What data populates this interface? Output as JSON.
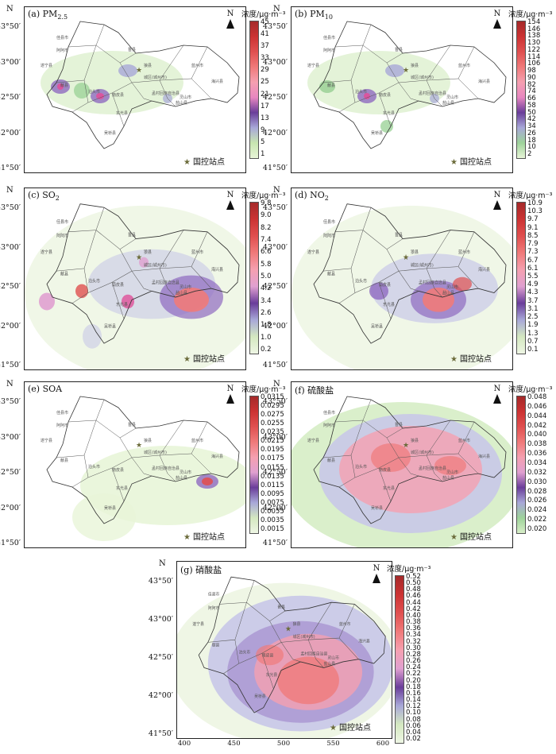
{
  "panels": [
    {
      "label": "(a) PM",
      "sub": "2.5",
      "unit": "浓度/μg·m⁻³",
      "ticks": [
        "45",
        "41",
        "37",
        "33",
        "29",
        "25",
        "21",
        "17",
        "13",
        "9",
        "5",
        "1"
      ],
      "colors": [
        "#a52a2a",
        "#c33",
        "#e05050",
        "#f07a7a",
        "#f5a0b0",
        "#e887c0",
        "#6a3d9a",
        "#a8a8d8",
        "#c8e6b0",
        "#e8f5d8"
      ],
      "pattern": "pm25"
    },
    {
      "label": "(b) PM",
      "sub": "10",
      "unit": "浓度/μg·m⁻³",
      "ticks": [
        "154",
        "146",
        "138",
        "130",
        "122",
        "114",
        "106",
        "98",
        "90",
        "82",
        "74",
        "66",
        "58",
        "50",
        "42",
        "34",
        "26",
        "18",
        "10",
        "2"
      ],
      "colors": [
        "#a52a2a",
        "#c33",
        "#e05050",
        "#f07a7a",
        "#f5a0b0",
        "#e887c0",
        "#6a3d9a",
        "#a8a8d8",
        "#9ed39a",
        "#e8f5d8"
      ],
      "pattern": "pm10"
    },
    {
      "label": "(c) SO",
      "sub": "2",
      "unit": "浓度/μg·m⁻³",
      "ticks": [
        "9.8",
        "9.0",
        "8.2",
        "7.4",
        "6.6",
        "5.8",
        "5.0",
        "4.2",
        "3.4",
        "2.6",
        "1.8",
        "1.0",
        "0.2"
      ],
      "colors": [
        "#a52a2a",
        "#c33",
        "#e05050",
        "#f07a7a",
        "#f5a0b0",
        "#e0a0d0",
        "#6a3d9a",
        "#a8a8d8",
        "#d4e8c0",
        "#eef6e4"
      ],
      "pattern": "so2"
    },
    {
      "label": "(d) NO",
      "sub": "2",
      "unit": "浓度/μg·m⁻³",
      "ticks": [
        "10.9",
        "10.3",
        "9.7",
        "9.1",
        "8.5",
        "7.9",
        "7.3",
        "6.7",
        "6.1",
        "5.5",
        "4.9",
        "4.3",
        "3.7",
        "3.1",
        "2.5",
        "1.9",
        "1.3",
        "0.7",
        "0.1"
      ],
      "colors": [
        "#a52a2a",
        "#c33",
        "#e05050",
        "#f07a7a",
        "#f5a0b0",
        "#e0a0d0",
        "#6a3d9a",
        "#a8a8d8",
        "#d4e8c0",
        "#eef6e4"
      ],
      "pattern": "no2"
    },
    {
      "label": "(e) SOA",
      "sub": "",
      "unit": "浓度/μg·m⁻³",
      "ticks": [
        "0.0315",
        "0.0295",
        "0.0275",
        "0.0255",
        "0.0235",
        "0.0215",
        "0.0195",
        "0.0175",
        "0.0155",
        "0.0135",
        "0.0115",
        "0.0095",
        "0.0075",
        "0.0055",
        "0.0035",
        "0.0015"
      ],
      "colors": [
        "#a52a2a",
        "#c33",
        "#e05050",
        "#f07a7a",
        "#f5a0b0",
        "#e0a0d0",
        "#6a3d9a",
        "#a8a8d8",
        "#d4e8c0",
        "#eef6e4"
      ],
      "pattern": "soa"
    },
    {
      "label": "(f) 硫酸盐",
      "sub": "",
      "unit": "浓度/μg·m⁻³",
      "ticks": [
        "0.048",
        "0.046",
        "0.044",
        "0.042",
        "0.040",
        "0.038",
        "0.036",
        "0.034",
        "0.032",
        "0.030",
        "0.028",
        "0.026",
        "0.024",
        "0.022",
        "0.020"
      ],
      "colors": [
        "#a52a2a",
        "#c33",
        "#e05050",
        "#f07a7a",
        "#f5a0b0",
        "#e0a0d0",
        "#6a3d9a",
        "#a8a8d8",
        "#9ed39a",
        "#d8eec8"
      ],
      "pattern": "so4"
    },
    {
      "label": "(g) 硝酸盐",
      "sub": "",
      "unit": "浓度/μg·m⁻³",
      "ticks": [
        "0.52",
        "0.50",
        "0.48",
        "0.46",
        "0.44",
        "0.42",
        "0.40",
        "0.38",
        "0.36",
        "0.34",
        "0.32",
        "0.30",
        "0.28",
        "0.26",
        "0.24",
        "0.22",
        "0.20",
        "0.18",
        "0.16",
        "0.14",
        "0.12",
        "0.10",
        "0.08",
        "0.06",
        "0.04",
        "0.02"
      ],
      "colors": [
        "#a52a2a",
        "#c33",
        "#e05050",
        "#f07a7a",
        "#f5a0b0",
        "#e0a0d0",
        "#6a3d9a",
        "#a8a8d8",
        "#d4e8c0",
        "#eef6e4"
      ],
      "pattern": "no3"
    }
  ],
  "station_label": "国控站点",
  "north_label": "N",
  "axis_n": "N",
  "lat_labels": [
    "43°50′",
    "43°00′",
    "42°50′",
    "42°00′",
    "41°50′"
  ],
  "x_ticks": [
    "400",
    "450",
    "500",
    "550",
    "600"
  ],
  "counties": [
    "佳县市",
    "阿阿市",
    "遂宁县",
    "献县",
    "晋县",
    "狼县",
    "城区(城州市)",
    "蓝州市",
    "灵山市",
    "海兴县",
    "泊头市",
    "南皮县",
    "孟村回族自治县",
    "盐山县",
    "东光县",
    "吴桥县"
  ]
}
